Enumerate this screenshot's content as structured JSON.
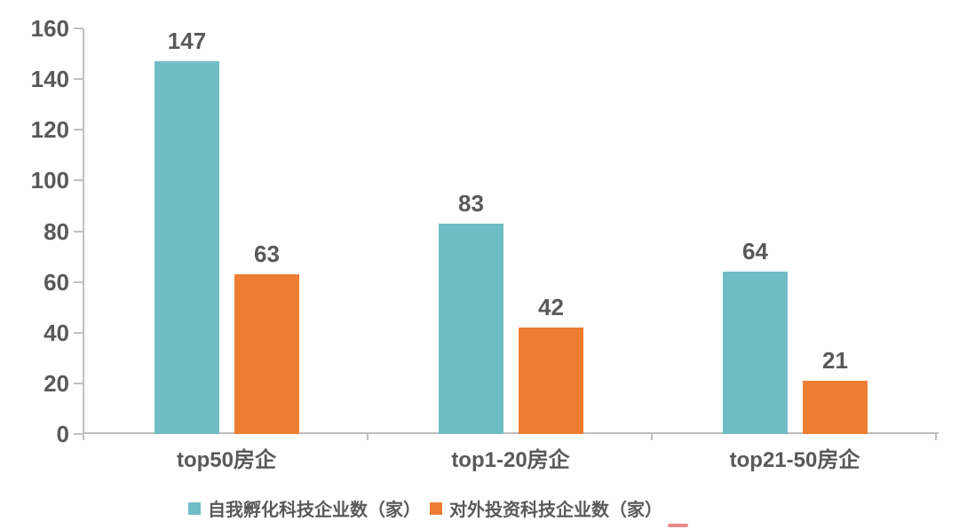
{
  "chart_data": {
    "type": "bar",
    "categories": [
      "top50房企",
      "top1-20房企",
      "top21-50房企"
    ],
    "series": [
      {
        "name": "自我孵化科技企业数（家）",
        "color": "#6FBEC5",
        "values": [
          147,
          83,
          64
        ]
      },
      {
        "name": "对外投资科技企业数（家）",
        "color": "#ED7D31",
        "values": [
          63,
          42,
          21
        ]
      }
    ],
    "title": "",
    "xlabel": "",
    "ylabel": "",
    "ylim": [
      0,
      160
    ],
    "yticks": [
      0,
      20,
      40,
      60,
      80,
      100,
      120,
      140,
      160
    ],
    "grid": false,
    "value_labels": true,
    "legend_position": "bottom"
  },
  "colors": {
    "background": "#FFFFFF",
    "axis_line": "#BFBFBF",
    "text": "#595959",
    "red_mark": "#E88A8A"
  }
}
